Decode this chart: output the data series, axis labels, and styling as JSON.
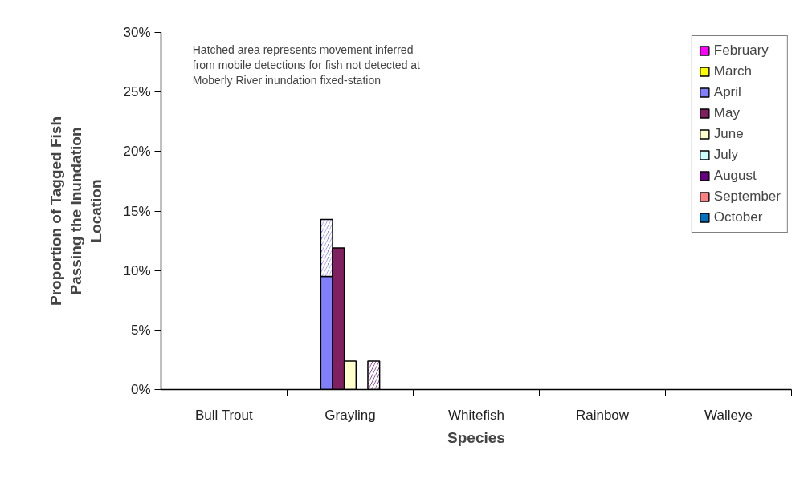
{
  "chart_data": {
    "type": "bar",
    "xlabel": "Species",
    "ylabel": "Proportion of Tagged Fish\nPassing the Inundation\nLocation",
    "annotations": [
      "Hatched area represents movement inferred\nfrom mobile detections for fish not detected at\nMoberly River inundation fixed-station"
    ],
    "categories": [
      "Bull Trout",
      "Grayling",
      "Whitefish",
      "Rainbow",
      "Walleye"
    ],
    "series": [
      {
        "name": "February",
        "color": "#ff00ff",
        "values": [
          null,
          null,
          null,
          null,
          null
        ]
      },
      {
        "name": "March",
        "color": "#ffff00",
        "values": [
          null,
          null,
          null,
          null,
          null
        ]
      },
      {
        "name": "April",
        "color": "#8080ff",
        "values": [
          null,
          9.5,
          null,
          null,
          null
        ]
      },
      {
        "color": "#8080ff",
        "base": [
          null,
          9.5,
          null,
          null,
          null
        ],
        "values": [
          null,
          4.8,
          null,
          null,
          null
        ]
      },
      {
        "name": "May",
        "color": "#802060",
        "values": [
          null,
          11.9,
          null,
          null,
          null
        ]
      },
      {
        "name": "June",
        "color": "#ffffcc",
        "values": [
          null,
          2.4,
          null,
          null,
          null
        ]
      },
      {
        "name": "July",
        "color": "#ccffff",
        "values": [
          null,
          null,
          null,
          null,
          null
        ]
      },
      {
        "name": "August",
        "color": "#660080",
        "values": [
          null,
          null,
          null,
          null,
          null
        ]
      },
      {
        "color": "#660080",
        "base": [
          null,
          0,
          null,
          null,
          null
        ],
        "values": [
          null,
          2.4,
          null,
          null,
          null
        ]
      },
      {
        "name": "September",
        "color": "#ff8080",
        "values": [
          null,
          null,
          null,
          null,
          null
        ]
      },
      {
        "name": "October",
        "color": "#0070c0",
        "values": [
          null,
          null,
          null,
          null,
          null
        ]
      }
    ],
    "ylim": [
      0,
      30
    ],
    "yticks": [
      {
        "value": 0,
        "label": "0%"
      },
      {
        "value": 5,
        "label": "5%"
      },
      {
        "value": 10,
        "label": "10%"
      },
      {
        "value": 15,
        "label": "15%"
      },
      {
        "value": 20,
        "label": "20%"
      },
      {
        "value": 25,
        "label": "25%"
      },
      {
        "value": 30,
        "label": "30%"
      }
    ],
    "grid": false,
    "legend": "top right"
  }
}
